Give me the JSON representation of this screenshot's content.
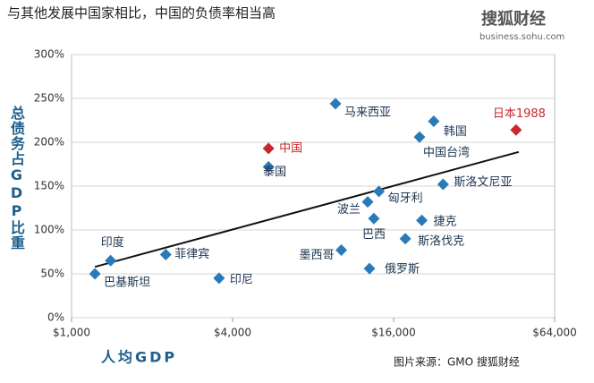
{
  "chart_data": {
    "type": "scatter",
    "title": "与其他发展中国家相比，中国的负债率相当高",
    "logo": "搜狐财经",
    "logo_url": "business.sohu.com",
    "x_label": "人均GDP",
    "y_label": "总债务占GDP比重",
    "source": "图片来源：GMO  搜狐财经",
    "log_x": true,
    "xlim": [
      1000,
      64000
    ],
    "xticks": [
      {
        "value": 1000,
        "label": "$1,000"
      },
      {
        "value": 4000,
        "label": "$4,000"
      },
      {
        "value": 16000,
        "label": "$16,000"
      },
      {
        "value": 64000,
        "label": "$64,000"
      }
    ],
    "ylim": [
      0,
      300
    ],
    "yticks": [
      {
        "value": 0,
        "label": "0%"
      },
      {
        "value": 50,
        "label": "50%"
      },
      {
        "value": 100,
        "label": "100%"
      },
      {
        "value": 150,
        "label": "150%"
      },
      {
        "value": 200,
        "label": "200%"
      },
      {
        "value": 250,
        "label": "250%"
      },
      {
        "value": 300,
        "label": "300%"
      }
    ],
    "grid": true,
    "points": [
      {
        "label": "巴基斯坦",
        "x": 1223,
        "y": 50,
        "color": "#2a7ab8"
      },
      {
        "label": "印度",
        "x": 1400,
        "y": 65,
        "color": "#2a7ab8"
      },
      {
        "label": "菲律宾",
        "x": 2250,
        "y": 72,
        "color": "#2a7ab8"
      },
      {
        "label": "印尼",
        "x": 3560,
        "y": 45,
        "color": "#2a7ab8"
      },
      {
        "label": "泰国",
        "x": 5450,
        "y": 172,
        "color": "#2a7ab8"
      },
      {
        "label": "中国",
        "x": 5450,
        "y": 193,
        "color": "#c8282d"
      },
      {
        "label": "马来西亚",
        "x": 9700,
        "y": 244,
        "color": "#2a7ab8"
      },
      {
        "label": "墨西哥",
        "x": 10200,
        "y": 77,
        "color": "#2a7ab8"
      },
      {
        "label": "波兰",
        "x": 12800,
        "y": 132,
        "color": "#2a7ab8"
      },
      {
        "label": "匈牙利",
        "x": 14100,
        "y": 144,
        "color": "#2a7ab8"
      },
      {
        "label": "巴西",
        "x": 13500,
        "y": 113,
        "color": "#2a7ab8"
      },
      {
        "label": "俄罗斯",
        "x": 13000,
        "y": 56,
        "color": "#2a7ab8"
      },
      {
        "label": "斯洛伐克",
        "x": 17700,
        "y": 90,
        "color": "#2a7ab8"
      },
      {
        "label": "捷克",
        "x": 20400,
        "y": 111,
        "color": "#2a7ab8"
      },
      {
        "label": "斯洛文尼亚",
        "x": 24500,
        "y": 152,
        "color": "#2a7ab8"
      },
      {
        "label": "中国台湾",
        "x": 20000,
        "y": 206,
        "color": "#2a7ab8"
      },
      {
        "label": "韩国",
        "x": 22600,
        "y": 224,
        "color": "#2a7ab8"
      },
      {
        "label": "日本1988",
        "x": 45900,
        "y": 214,
        "color": "#c8282d"
      }
    ],
    "trendline": {
      "x": [
        1223,
        47000
      ],
      "y": [
        58,
        189
      ],
      "color": "#111111"
    }
  }
}
